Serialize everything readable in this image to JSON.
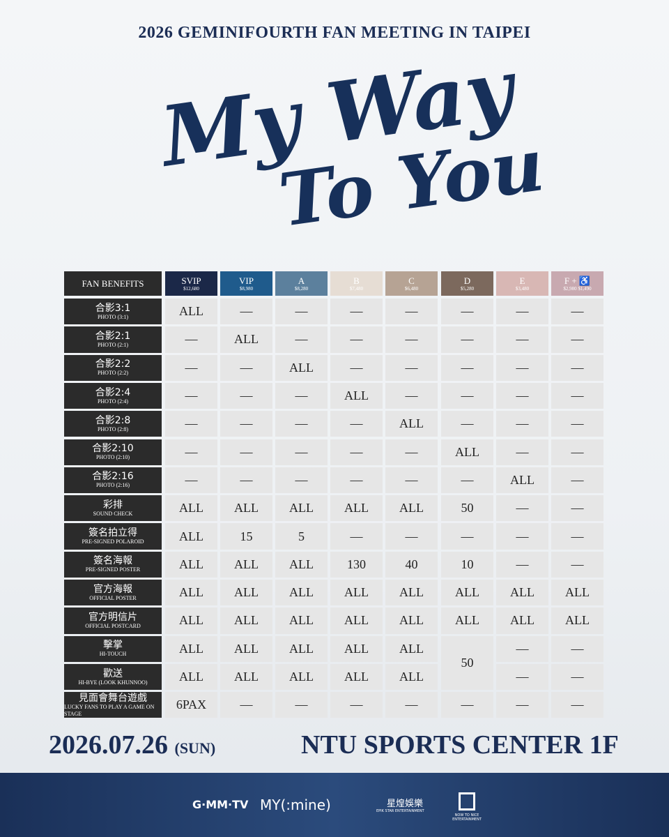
{
  "header": {
    "event": "2026  GEMINIFOURTH FAN MEETING IN TAIPEI",
    "title_line1": "My Way",
    "title_line2": "To You"
  },
  "table": {
    "corner": "FAN BENEFITS",
    "tiers": [
      {
        "name": "SVIP",
        "price": "$12,680",
        "color": "#1b2848"
      },
      {
        "name": "VIP",
        "price": "$8,980",
        "color": "#1f5b8c"
      },
      {
        "name": "A",
        "price": "$8,280",
        "color": "#5c809d"
      },
      {
        "name": "B",
        "price": "$7,480",
        "color": "#e6ddd4"
      },
      {
        "name": "C",
        "price": "$6,480",
        "color": "#b6a394"
      },
      {
        "name": "D",
        "price": "$5,280",
        "color": "#7c695d"
      },
      {
        "name": "E",
        "price": "$3,480",
        "color": "#d8b7b4"
      },
      {
        "name": "F + ♿",
        "price": "$2,980   $1,490",
        "color": "#c8a9b0"
      }
    ],
    "rows": [
      {
        "zh": "合影3:1",
        "en": "PHOTO (3:1)",
        "cells": [
          "ALL",
          "—",
          "—",
          "—",
          "—",
          "—",
          "—",
          "—"
        ]
      },
      {
        "zh": "合影2:1",
        "en": "PHOTO (2:1)",
        "cells": [
          "—",
          "ALL",
          "—",
          "—",
          "—",
          "—",
          "—",
          "—"
        ]
      },
      {
        "zh": "合影2:2",
        "en": "PHOTO (2:2)",
        "cells": [
          "—",
          "—",
          "ALL",
          "—",
          "—",
          "—",
          "—",
          "—"
        ]
      },
      {
        "zh": "合影2:4",
        "en": "PHOTO (2:4)",
        "cells": [
          "—",
          "—",
          "—",
          "ALL",
          "—",
          "—",
          "—",
          "—"
        ]
      },
      {
        "zh": "合影2:8",
        "en": "PHOTO (2:8)",
        "cells": [
          "—",
          "—",
          "—",
          "—",
          "ALL",
          "—",
          "—",
          "—"
        ]
      },
      {
        "zh": "合影2:10",
        "en": "PHOTO (2:10)",
        "cells": [
          "—",
          "—",
          "—",
          "—",
          "—",
          "ALL",
          "—",
          "—"
        ]
      },
      {
        "zh": "合影2:16",
        "en": "PHOTO (2:16)",
        "cells": [
          "—",
          "—",
          "—",
          "—",
          "—",
          "—",
          "ALL",
          "—"
        ]
      },
      {
        "zh": "彩排",
        "en": "SOUND CHECK",
        "cells": [
          "ALL",
          "ALL",
          "ALL",
          "ALL",
          "ALL",
          "50",
          "—",
          "—"
        ]
      },
      {
        "zh": "簽名拍立得",
        "en": "PRE-SIGNED POLAROID",
        "cells": [
          "ALL",
          "15",
          "5",
          "—",
          "—",
          "—",
          "—",
          "—"
        ]
      },
      {
        "zh": "簽名海報",
        "en": "PRE-SIGNED POSTER",
        "cells": [
          "ALL",
          "ALL",
          "ALL",
          "130",
          "40",
          "10",
          "—",
          "—"
        ]
      },
      {
        "zh": "官方海報",
        "en": "OFFICIAL POSTER",
        "cells": [
          "ALL",
          "ALL",
          "ALL",
          "ALL",
          "ALL",
          "ALL",
          "ALL",
          "ALL"
        ]
      },
      {
        "zh": "官方明信片",
        "en": "OFFICIAL POSTCARD",
        "cells": [
          "ALL",
          "ALL",
          "ALL",
          "ALL",
          "ALL",
          "ALL",
          "ALL",
          "ALL"
        ]
      },
      {
        "zh": "擊掌",
        "en": "HI-TOUCH",
        "cells": [
          "ALL",
          "ALL",
          "ALL",
          "ALL",
          "ALL",
          "50",
          "—",
          "—"
        ]
      },
      {
        "zh": "歡送",
        "en": "HI-BYE (LOOK KHUNNOO)",
        "cells": [
          "ALL",
          "ALL",
          "ALL",
          "ALL",
          "ALL",
          null,
          "—",
          "—"
        ]
      },
      {
        "zh": "見面會舞台遊戲",
        "en": "LUCKY FANS TO PLAY A GAME ON STAGE",
        "cells": [
          "6PAX",
          "—",
          "—",
          "—",
          "—",
          "—",
          "—",
          "—"
        ]
      }
    ],
    "merged": [
      {
        "row": 12,
        "col": 5,
        "rowspan": 2
      }
    ]
  },
  "footer": {
    "date": "2026.07.26",
    "day": "(SUN)",
    "venue": "NTU SPORTS CENTER 1F",
    "logos": [
      "G·MM·TV",
      "MY(:mine)",
      "星煌娛樂",
      "EPIK STAR ENTERTAINMENT",
      "NOW TO NICE ENTERTAINMENT"
    ]
  }
}
